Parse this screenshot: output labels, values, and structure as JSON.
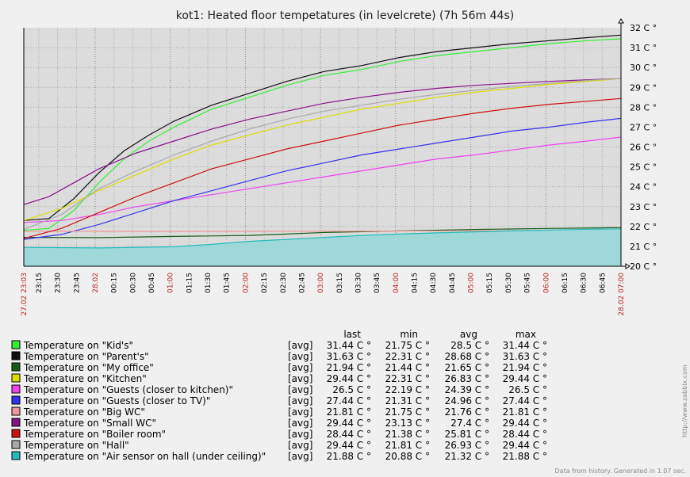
{
  "chart_data": {
    "type": "line",
    "title": "kot1: Heated floor tempetatures (in levelcrete) (7h 56m 44s)",
    "ylim": [
      20,
      32
    ],
    "y_unit": " C °",
    "y_ticks": [
      "20 C °",
      "21 C °",
      "22 C °",
      "23 C °",
      "24 C °",
      "25 C °",
      "26 C °",
      "27 C °",
      "28 C °",
      "29 C °",
      "30 C °",
      "31 C °",
      "32 C °"
    ],
    "x_ticks": [
      {
        "t": 0,
        "label": "27.02 23:03",
        "major": true
      },
      {
        "t": 12,
        "label": "23:15",
        "major": false
      },
      {
        "t": 27,
        "label": "23:30",
        "major": false
      },
      {
        "t": 42,
        "label": "23:45",
        "major": false
      },
      {
        "t": 57,
        "label": "28.02",
        "major": true
      },
      {
        "t": 72,
        "label": "00:15",
        "major": false
      },
      {
        "t": 87,
        "label": "00:30",
        "major": false
      },
      {
        "t": 102,
        "label": "00:45",
        "major": false
      },
      {
        "t": 117,
        "label": "01:00",
        "major": true
      },
      {
        "t": 132,
        "label": "01:15",
        "major": false
      },
      {
        "t": 147,
        "label": "01:30",
        "major": false
      },
      {
        "t": 162,
        "label": "01:45",
        "major": false
      },
      {
        "t": 177,
        "label": "02:00",
        "major": true
      },
      {
        "t": 192,
        "label": "02:15",
        "major": false
      },
      {
        "t": 207,
        "label": "02:30",
        "major": false
      },
      {
        "t": 222,
        "label": "02:45",
        "major": false
      },
      {
        "t": 237,
        "label": "03:00",
        "major": true
      },
      {
        "t": 252,
        "label": "03:15",
        "major": false
      },
      {
        "t": 267,
        "label": "03:30",
        "major": false
      },
      {
        "t": 282,
        "label": "03:45",
        "major": false
      },
      {
        "t": 297,
        "label": "04:00",
        "major": true
      },
      {
        "t": 312,
        "label": "04:15",
        "major": false
      },
      {
        "t": 327,
        "label": "04:30",
        "major": false
      },
      {
        "t": 342,
        "label": "04:45",
        "major": false
      },
      {
        "t": 357,
        "label": "05:00",
        "major": true
      },
      {
        "t": 372,
        "label": "05:15",
        "major": false
      },
      {
        "t": 387,
        "label": "05:30",
        "major": false
      },
      {
        "t": 402,
        "label": "05:45",
        "major": false
      },
      {
        "t": 417,
        "label": "06:00",
        "major": true
      },
      {
        "t": 432,
        "label": "06:15",
        "major": false
      },
      {
        "t": 447,
        "label": "06:30",
        "major": false
      },
      {
        "t": 462,
        "label": "06:45",
        "major": false
      },
      {
        "t": 477,
        "label": "28.02 07:00",
        "major": true
      }
    ],
    "x_range_minutes": [
      0,
      477
    ],
    "legend_headers": {
      "last": "last",
      "min": "min",
      "avg": "avg",
      "max": "max"
    },
    "series": [
      {
        "name": "Temperature on \"Kid's\"",
        "color": "#33ee33",
        "fn": "[avg]",
        "last": "31.44 C °",
        "min": "21.75 C °",
        "avg": "28.5 C °",
        "max": "31.44 C °",
        "x": [
          0,
          20,
          40,
          60,
          80,
          100,
          120,
          150,
          180,
          210,
          240,
          270,
          300,
          330,
          360,
          390,
          420,
          450,
          477
        ],
        "values": [
          21.8,
          21.9,
          22.8,
          24.2,
          25.4,
          26.3,
          27.0,
          27.9,
          28.5,
          29.1,
          29.6,
          29.9,
          30.3,
          30.6,
          30.8,
          31.0,
          31.2,
          31.35,
          31.44
        ]
      },
      {
        "name": "Temperature on \"Parent's\"",
        "color": "#111111",
        "fn": "[avg]",
        "last": "31.63 C °",
        "min": "22.31 C °",
        "avg": "28.68 C °",
        "max": "31.63 C °",
        "x": [
          0,
          20,
          40,
          60,
          80,
          100,
          120,
          150,
          180,
          210,
          240,
          270,
          300,
          330,
          360,
          390,
          420,
          450,
          477
        ],
        "values": [
          22.3,
          22.4,
          23.4,
          24.7,
          25.8,
          26.6,
          27.3,
          28.1,
          28.7,
          29.3,
          29.8,
          30.1,
          30.5,
          30.8,
          31.0,
          31.2,
          31.35,
          31.5,
          31.63
        ]
      },
      {
        "name": "Temperature on \"My office\"",
        "color": "#1a5c1a",
        "fn": "[avg]",
        "last": "21.94 C °",
        "min": "21.44 C °",
        "avg": "21.65 C °",
        "max": "21.94 C °",
        "x": [
          0,
          60,
          120,
          180,
          210,
          240,
          300,
          360,
          420,
          477
        ],
        "values": [
          21.45,
          21.44,
          21.5,
          21.55,
          21.62,
          21.7,
          21.78,
          21.85,
          21.9,
          21.94
        ]
      },
      {
        "name": "Temperature on \"Kitchen\"",
        "color": "#dddd00",
        "fn": "[avg]",
        "last": "29.44 C °",
        "min": "22.31 C °",
        "avg": "26.83 C °",
        "max": "29.44 C °",
        "x": [
          0,
          30,
          60,
          90,
          120,
          150,
          180,
          210,
          240,
          270,
          300,
          330,
          360,
          390,
          420,
          450,
          477
        ],
        "values": [
          22.3,
          22.9,
          23.8,
          24.6,
          25.4,
          26.1,
          26.6,
          27.1,
          27.5,
          27.9,
          28.2,
          28.5,
          28.75,
          28.95,
          29.15,
          29.3,
          29.44
        ]
      },
      {
        "name": "Temperature on \"Guests (closer to kitchen)\"",
        "color": "#ee44ee",
        "fn": "[avg]",
        "last": "26.5 C °",
        "min": "22.19 C °",
        "avg": "24.39 C °",
        "max": "26.5 C °",
        "x": [
          0,
          30,
          60,
          90,
          120,
          150,
          180,
          210,
          240,
          270,
          300,
          330,
          360,
          390,
          420,
          450,
          477
        ],
        "values": [
          22.2,
          22.3,
          22.6,
          23.0,
          23.3,
          23.6,
          23.9,
          24.2,
          24.5,
          24.8,
          25.1,
          25.4,
          25.6,
          25.85,
          26.1,
          26.3,
          26.5
        ]
      },
      {
        "name": "Temperature on \"Guests (closer to TV)\"",
        "color": "#3333ee",
        "fn": "[avg]",
        "last": "27.44 C °",
        "min": "21.31 C °",
        "avg": "24.96 C °",
        "max": "27.44 C °",
        "x": [
          0,
          30,
          60,
          90,
          120,
          150,
          180,
          210,
          240,
          270,
          300,
          330,
          360,
          390,
          420,
          450,
          477
        ],
        "values": [
          21.35,
          21.6,
          22.1,
          22.7,
          23.3,
          23.8,
          24.3,
          24.8,
          25.2,
          25.6,
          25.9,
          26.2,
          26.5,
          26.8,
          27.0,
          27.25,
          27.44
        ]
      },
      {
        "name": "Temperature on \"Big WC\"",
        "color": "#ee9999",
        "fn": "[avg]",
        "last": "21.81 C °",
        "min": "21.75 C °",
        "avg": "21.76 C °",
        "max": "21.81 C °",
        "x": [
          0,
          100,
          200,
          300,
          400,
          477
        ],
        "values": [
          21.76,
          21.75,
          21.76,
          21.77,
          21.79,
          21.81
        ]
      },
      {
        "name": "Temperature on \"Small WC\"",
        "color": "#881188",
        "fn": "[avg]",
        "last": "29.44 C °",
        "min": "23.13 C °",
        "avg": "27.4 C °",
        "max": "29.44 C °",
        "x": [
          0,
          20,
          40,
          60,
          90,
          120,
          150,
          180,
          210,
          240,
          270,
          300,
          330,
          360,
          390,
          420,
          450,
          477
        ],
        "values": [
          23.1,
          23.5,
          24.2,
          24.9,
          25.7,
          26.3,
          26.9,
          27.4,
          27.8,
          28.2,
          28.5,
          28.75,
          28.95,
          29.1,
          29.2,
          29.3,
          29.38,
          29.44
        ]
      },
      {
        "name": "Temperature on \"Boiler room\"",
        "color": "#cc1111",
        "fn": "[avg]",
        "last": "28.44 C °",
        "min": "21.38 C °",
        "avg": "25.81 C °",
        "max": "28.44 C °",
        "x": [
          0,
          30,
          60,
          90,
          120,
          150,
          180,
          210,
          240,
          270,
          300,
          330,
          360,
          390,
          420,
          450,
          477
        ],
        "values": [
          21.4,
          21.9,
          22.7,
          23.5,
          24.2,
          24.9,
          25.4,
          25.9,
          26.3,
          26.7,
          27.1,
          27.4,
          27.7,
          27.95,
          28.15,
          28.3,
          28.44
        ]
      },
      {
        "name": "Temperature on \"Hall\"",
        "color": "#aaaaaa",
        "fn": "[avg]",
        "last": "29.44 C °",
        "min": "21.81 C °",
        "avg": "26.93 C °",
        "max": "29.44 C °",
        "x": [
          0,
          30,
          60,
          90,
          120,
          150,
          180,
          210,
          240,
          270,
          300,
          330,
          360,
          390,
          420,
          450,
          477
        ],
        "values": [
          21.85,
          22.6,
          23.9,
          24.8,
          25.6,
          26.3,
          26.9,
          27.4,
          27.8,
          28.1,
          28.4,
          28.65,
          28.85,
          29.05,
          29.2,
          29.35,
          29.44
        ]
      },
      {
        "name": "Temperature on \"Air sensor on hall (under ceiling)\"",
        "color": "#22bbbb",
        "fn": "[avg]",
        "last": "21.88 C °",
        "min": "20.88 C °",
        "avg": "21.32 C °",
        "max": "21.88 C °",
        "fill": true,
        "x": [
          0,
          60,
          120,
          150,
          180,
          210,
          240,
          270,
          300,
          330,
          360,
          390,
          420,
          450,
          477
        ],
        "values": [
          20.95,
          20.92,
          20.98,
          21.1,
          21.25,
          21.35,
          21.45,
          21.55,
          21.62,
          21.68,
          21.73,
          21.78,
          21.82,
          21.86,
          21.88
        ]
      }
    ],
    "footer": "Data from history. Generated in 1.07 sec.",
    "side_watermark": "http://www.zabbix.com"
  }
}
